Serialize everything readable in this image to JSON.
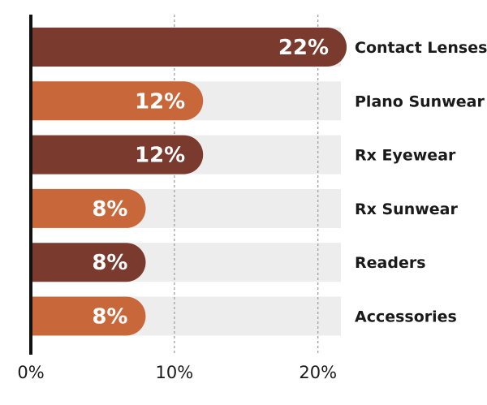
{
  "chart_data": {
    "type": "bar",
    "orientation": "horizontal",
    "categories": [
      "Contact Lenses",
      "Plano Sunwear",
      "Rx Eyewear",
      "Rx Sunwear",
      "Readers",
      "Accessories"
    ],
    "values": [
      22,
      12,
      12,
      8,
      8,
      8
    ],
    "value_labels": [
      "22%",
      "12%",
      "12%",
      "8%",
      "8%",
      "8%"
    ],
    "xlim": [
      0,
      21.6
    ],
    "xticks": [
      0,
      10,
      20
    ],
    "xtick_labels": [
      "0%",
      "10%",
      "20%"
    ],
    "grid": "vertical-dashed",
    "colors": {
      "dark": "#7a3b2e",
      "light": "#c8683a",
      "track": "#ededed",
      "grid": "#999999",
      "axis": "#111111"
    },
    "bar_colors": [
      "dark",
      "light",
      "dark",
      "light",
      "dark",
      "light"
    ]
  }
}
